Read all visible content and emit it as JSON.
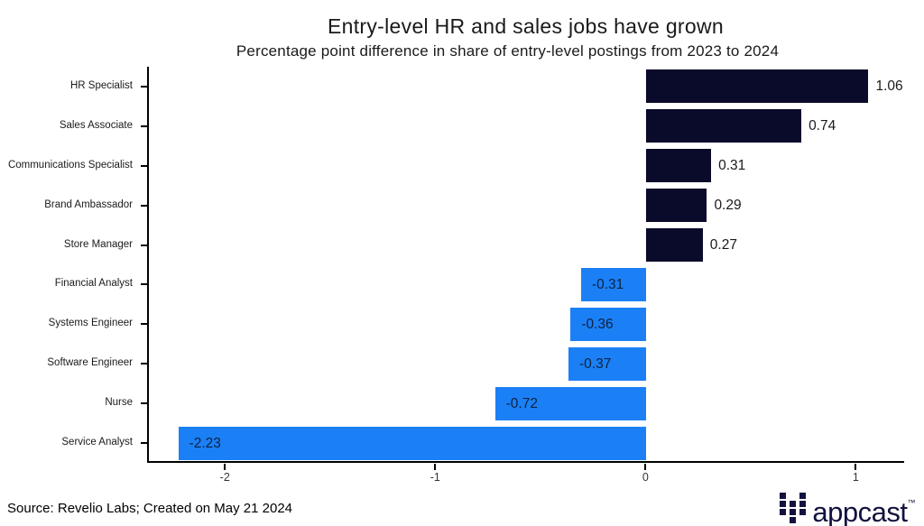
{
  "title": "Entry-level HR and sales jobs have grown",
  "subtitle": "Percentage point difference in share of entry-level postings from 2023 to 2024",
  "footer": {
    "source": "Source: Revelio Labs; Created on May 21 2024"
  },
  "logo": {
    "text": "appcast",
    "trademark": "™",
    "icon": "appcast-grid-icon",
    "color": "#12123f"
  },
  "chart_data": {
    "type": "bar",
    "orientation": "horizontal",
    "title": "Entry-level HR and sales jobs have grown",
    "subtitle": "Percentage point difference in share of entry-level postings from 2023 to 2024",
    "categories": [
      "HR Specialist",
      "Sales Associate",
      "Communications Specialist",
      "Brand Ambassador",
      "Store Manager",
      "Financial Analyst",
      "Systems Engineer",
      "Software Engineer",
      "Nurse",
      "Service Analyst"
    ],
    "values": [
      1.06,
      0.74,
      0.31,
      0.29,
      0.27,
      -0.31,
      -0.36,
      -0.37,
      -0.72,
      -2.23
    ],
    "value_labels": [
      "1.06",
      "0.74",
      "0.31",
      "0.29",
      "0.27",
      "-0.31",
      "-0.36",
      "-0.37",
      "-0.72",
      "-2.23"
    ],
    "xlim": [
      -2.37,
      1.23
    ],
    "x_ticks": [
      -2,
      -1,
      0,
      1
    ],
    "x_tick_labels": [
      "-2",
      "-1",
      "0",
      "1"
    ],
    "grid": false,
    "legend": "none",
    "positive_color": "#0a0a2a",
    "negative_color": "#1b80f6",
    "positive_label_color": "#1a1a1a",
    "negative_label_color": "#0e2240",
    "value_label_placement": "positive outside right, negative inside left"
  }
}
